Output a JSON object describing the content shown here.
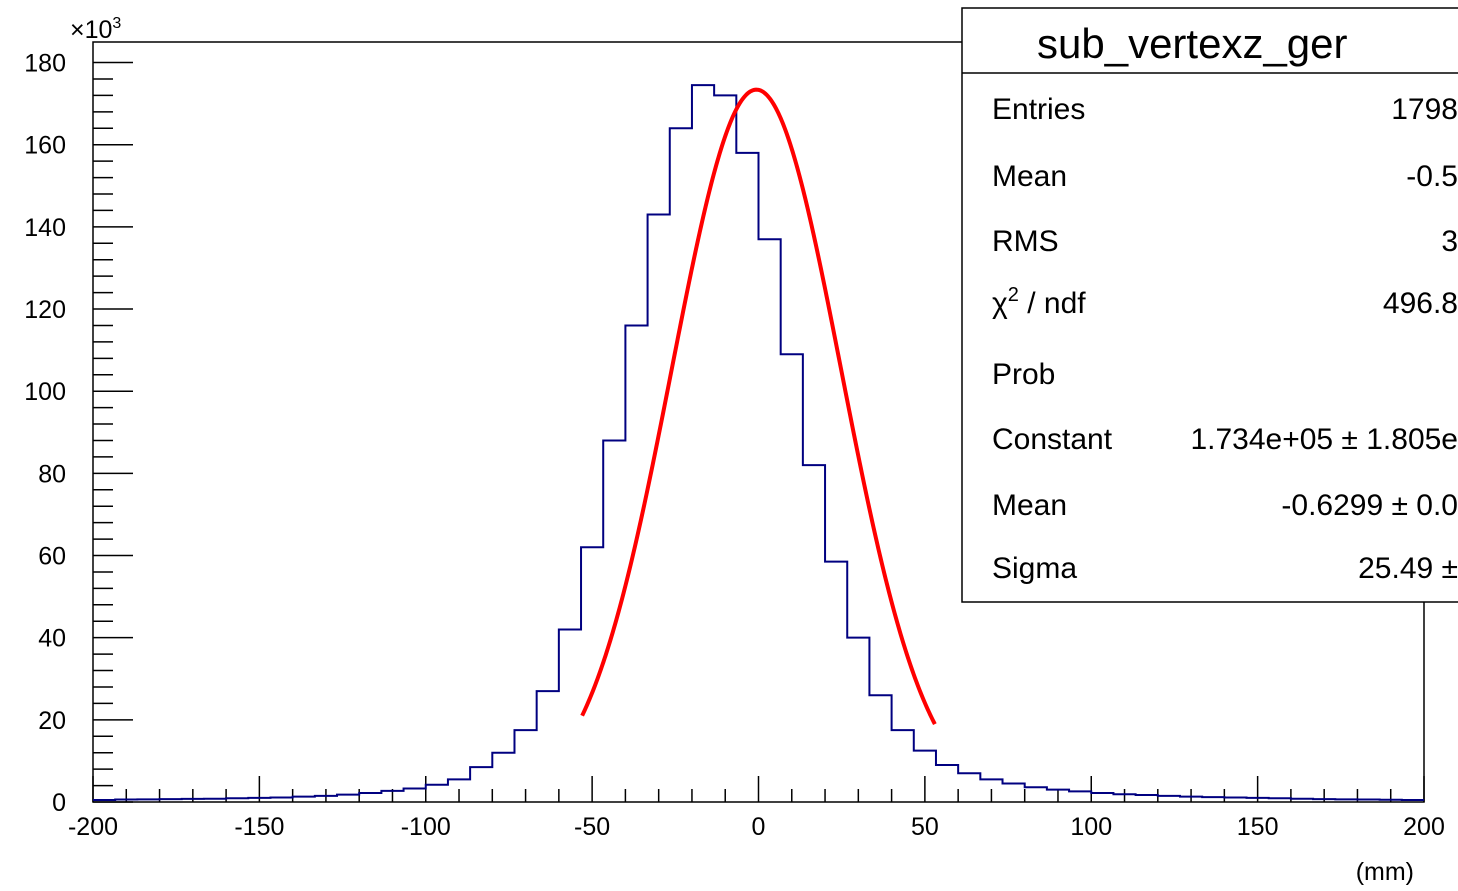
{
  "chart_data": {
    "type": "bar",
    "title": "",
    "xlabel": "(mm)",
    "ylabel": "",
    "y_multiplier_label": "×10",
    "y_multiplier_exponent": "3",
    "xlim": [
      -200,
      200
    ],
    "ylim": [
      0,
      180000
    ],
    "grid": false,
    "x_ticks": [
      "-200",
      "-150",
      "-100",
      "-50",
      "0",
      "50",
      "100",
      "150",
      "200"
    ],
    "y_ticks": [
      "0",
      "20",
      "40",
      "60",
      "80",
      "100",
      "120",
      "140",
      "160",
      "180"
    ],
    "bin_width": 6.667,
    "histogram": {
      "line_color": "#000080",
      "values": [
        500,
        600,
        650,
        700,
        750,
        800,
        900,
        1000,
        1100,
        1300,
        1500,
        1800,
        2200,
        2700,
        3300,
        4200,
        5500,
        8500,
        12000,
        17500,
        27000,
        42000,
        62000,
        88000,
        116000,
        143000,
        164000,
        174500,
        172000,
        158000,
        137000,
        109000,
        82000,
        58500,
        40000,
        26000,
        17500,
        12500,
        9000,
        7000,
        5500,
        4500,
        3600,
        3000,
        2600,
        2200,
        1900,
        1700,
        1500,
        1300,
        1200,
        1100,
        1000,
        900,
        800,
        700,
        650,
        600,
        550,
        500
      ]
    },
    "fit": {
      "function": "gaus",
      "line_color": "#ff0000",
      "range": [
        -53,
        53
      ],
      "constant": 173400,
      "mean": -0.6299,
      "sigma": 25.49
    },
    "stats_box": {
      "title": "sub_vertexz_ger",
      "rows": [
        {
          "label": "Entries",
          "value": "1798"
        },
        {
          "label": "Mean",
          "value": "-0.5"
        },
        {
          "label": "RMS",
          "value": "3"
        },
        {
          "label": "χ",
          "label_sup": "2",
          "label_rest": " / ndf",
          "value": "496.8"
        },
        {
          "label": "Prob",
          "value": ""
        },
        {
          "label": "Constant",
          "value": "1.734e+05 ± 1.805e"
        },
        {
          "label": "Mean",
          "value": "-0.6299 ± 0.0"
        },
        {
          "label": "Sigma",
          "value": "25.49 ±"
        }
      ]
    }
  }
}
